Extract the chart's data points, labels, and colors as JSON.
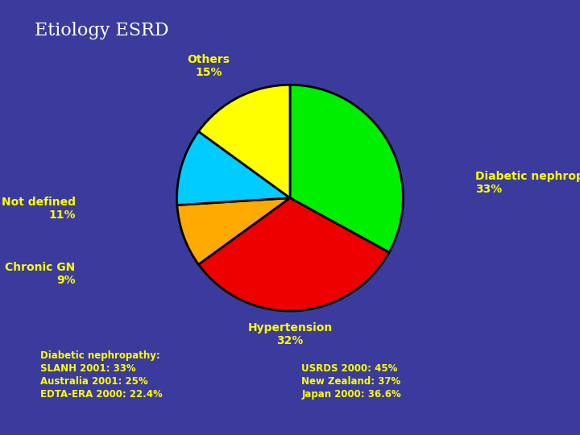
{
  "title": "Etiology ESRD",
  "background_color": "#3B3B9E",
  "slices": [
    {
      "label": "Diabetic nephropathy",
      "pct": 33,
      "color": "#00EE00"
    },
    {
      "label": "Hypertension",
      "pct": 32,
      "color": "#EE0000"
    },
    {
      "label": "Chronic GN",
      "pct": 9,
      "color": "#FFAA00"
    },
    {
      "label": "Not defined",
      "pct": 11,
      "color": "#00CCFF"
    },
    {
      "label": "Others",
      "pct": 15,
      "color": "#FFFF00"
    }
  ],
  "label_color": "#FFFF00",
  "title_color": "#FFFFFF",
  "annotation_color": "#FFFF00",
  "bottom_left_line1": "Diabetic nephropathy:",
  "bottom_left_lines": [
    "SLANH 2001: 33%",
    "Australia 2001: 25%",
    "EDTA-ERA 2000: 22.4%"
  ],
  "bottom_right_lines": [
    "USRDS 2000: 45%",
    "New Zealand: 37%",
    "Japan 2000: 36.6%"
  ]
}
